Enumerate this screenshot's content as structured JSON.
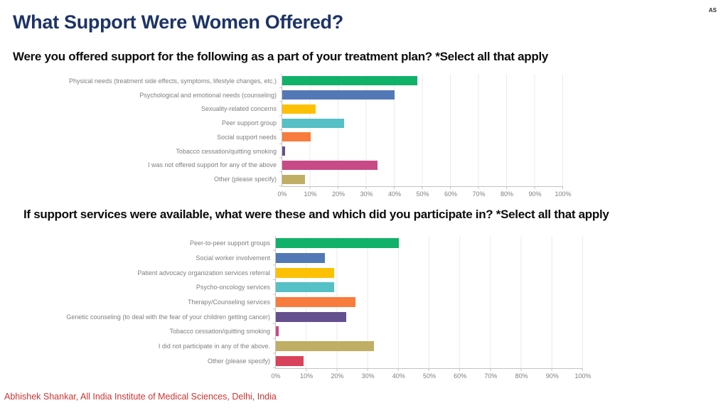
{
  "slide": {
    "title": "What Support Were Women Offered?",
    "watermark": "AS",
    "footer": "Abhishek Shankar, All India Institute of Medical Sciences, Delhi, India",
    "title_color": "#1e3467",
    "footer_color": "#cc3434"
  },
  "chart_data": [
    {
      "type": "bar",
      "orientation": "horizontal",
      "title": "Were you offered support for the following as a part of your treatment plan? *Select all that apply",
      "categories": [
        "Physical needs (treatment side effects, symptoms, lifestyle changes, etc.)",
        "Psychological and emotional needs (counseling)",
        "Sexuality-related concerns",
        "Peer support group",
        "Social support needs",
        "Tobacco cessation/quitting smoking",
        "I was not offered support for any of the above",
        "Other (please specify)"
      ],
      "values": [
        48,
        40,
        12,
        22,
        10,
        1,
        34,
        8
      ],
      "unit": "%",
      "xlim": [
        0,
        100
      ],
      "x_tick_labels": [
        "0%",
        "10%",
        "20%",
        "30%",
        "40%",
        "50%",
        "60%",
        "70%",
        "80%",
        "90%",
        "100%"
      ],
      "grid": true,
      "legend": "none",
      "bar_colors": [
        "#10b169",
        "#5378b6",
        "#fcc105",
        "#55c0c6",
        "#f87c3e",
        "#65508f",
        "#c84a86",
        "#bfae64"
      ]
    },
    {
      "type": "bar",
      "orientation": "horizontal",
      "title": "If support services were available, what were these and which did you participate in? *Select all that apply",
      "categories": [
        "Peer-to-peer support groups",
        "Social worker involvement",
        "Patient advocacy organization services referral",
        "Psycho-oncology services",
        "Therapy/Counseling services",
        "Genetic counseling (to deal with the fear of your children getting cancer)",
        "Tobacco cessation/quitting smoking",
        "I did not participate in any of the above.",
        "Other (please specify)"
      ],
      "values": [
        40,
        16,
        19,
        19,
        26,
        23,
        1,
        32,
        9
      ],
      "unit": "%",
      "xlim": [
        0,
        100
      ],
      "x_tick_labels": [
        "0%",
        "10%",
        "20%",
        "30%",
        "40%",
        "50%",
        "60%",
        "70%",
        "80%",
        "90%",
        "100%"
      ],
      "grid": true,
      "legend": "none",
      "bar_colors": [
        "#10b169",
        "#5378b6",
        "#fcc105",
        "#55c0c6",
        "#f87c3e",
        "#65508f",
        "#c84a86",
        "#bfae64",
        "#d8425a"
      ]
    }
  ]
}
